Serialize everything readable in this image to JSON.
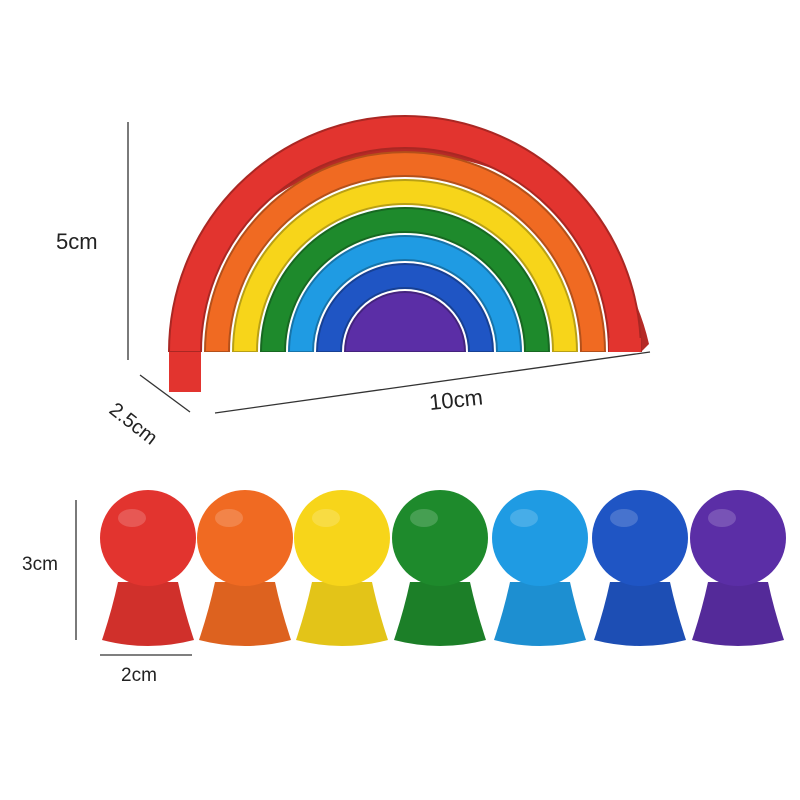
{
  "dimensions": {
    "rainbow_height": "5cm",
    "rainbow_depth": "2.5cm",
    "rainbow_width": "10cm",
    "peg_height": "3cm",
    "peg_width": "2cm"
  },
  "colors": {
    "rainbow": [
      "#e2342f",
      "#f06a22",
      "#f7d51a",
      "#1e8a2c",
      "#1f9be3",
      "#1f55c4",
      "#5b2ea6"
    ],
    "pegs": [
      "#e2342f",
      "#f06a22",
      "#f7d51a",
      "#1e8a2c",
      "#1f9be3",
      "#1f55c4",
      "#5b2ea6"
    ],
    "dimension_line": "#333333"
  }
}
